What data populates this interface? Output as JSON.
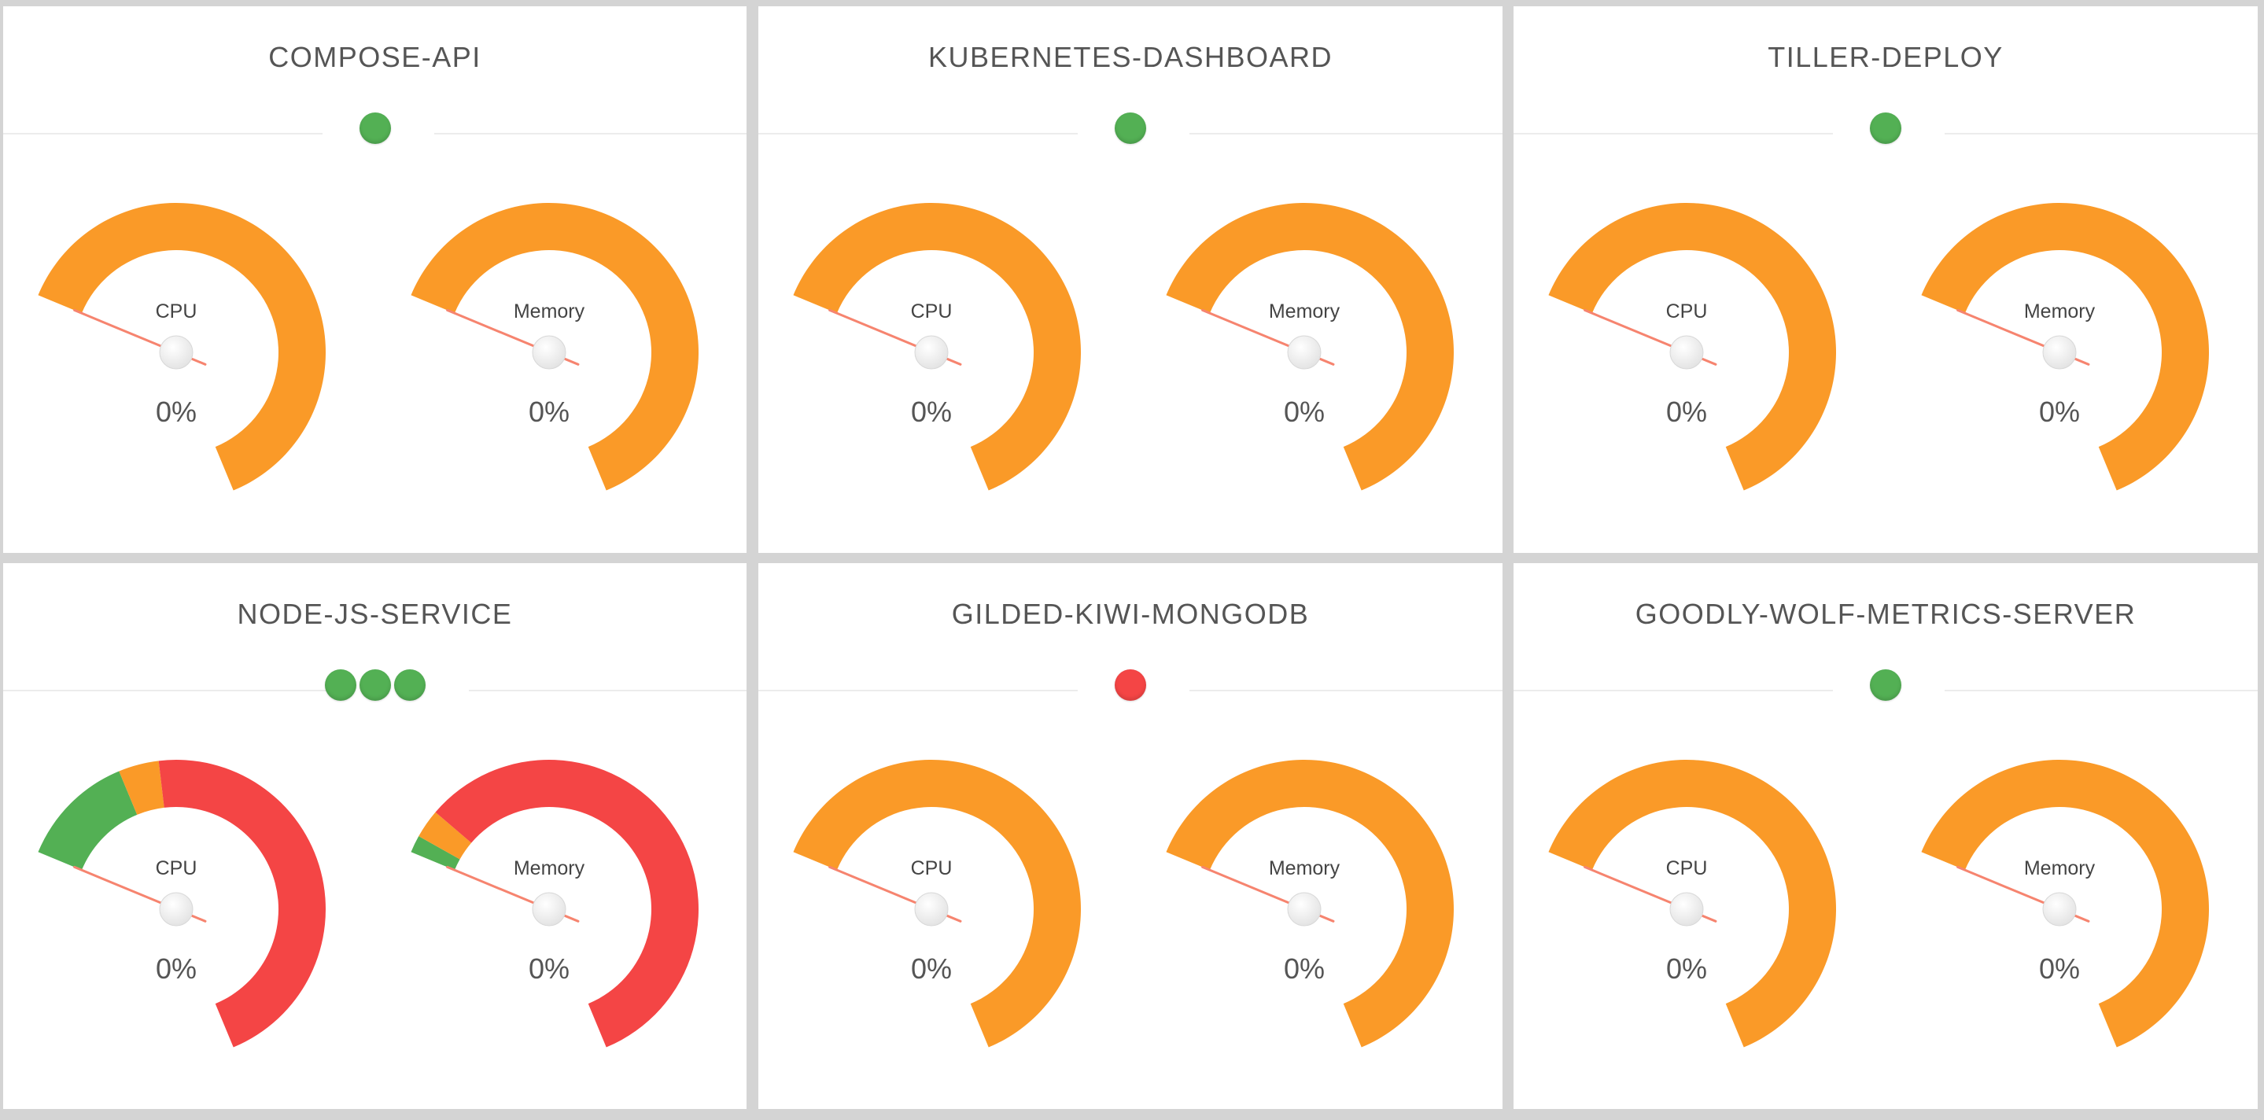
{
  "colors": {
    "ok": "#53b054",
    "warn": "#fa9a28",
    "crit": "#f44545",
    "needle": "#f6846f",
    "background": "#d4d4d4",
    "panel": "#ffffff"
  },
  "gauge_scale": {
    "min": 0,
    "max": 100
  },
  "services": [
    {
      "name": "COMPOSE-API",
      "pods": [
        "ok"
      ],
      "cpu": {
        "label": "CPU",
        "value": 0,
        "display": "0%",
        "bands": [
          {
            "from": 0,
            "to": 100,
            "color": "warn"
          }
        ]
      },
      "memory": {
        "label": "Memory",
        "value": 0,
        "display": "0%",
        "bands": [
          {
            "from": 0,
            "to": 100,
            "color": "warn"
          }
        ]
      }
    },
    {
      "name": "KUBERNETES-DASHBOARD",
      "pods": [
        "ok"
      ],
      "cpu": {
        "label": "CPU",
        "value": 0,
        "display": "0%",
        "bands": [
          {
            "from": 0,
            "to": 100,
            "color": "warn"
          }
        ]
      },
      "memory": {
        "label": "Memory",
        "value": 0,
        "display": "0%",
        "bands": [
          {
            "from": 0,
            "to": 100,
            "color": "warn"
          }
        ]
      }
    },
    {
      "name": "TILLER-DEPLOY",
      "pods": [
        "ok"
      ],
      "cpu": {
        "label": "CPU",
        "value": 0,
        "display": "0%",
        "bands": [
          {
            "from": 0,
            "to": 100,
            "color": "warn"
          }
        ]
      },
      "memory": {
        "label": "Memory",
        "value": 0,
        "display": "0%",
        "bands": [
          {
            "from": 0,
            "to": 100,
            "color": "warn"
          }
        ]
      }
    },
    {
      "name": "NODE-JS-SERVICE",
      "pods": [
        "ok",
        "ok",
        "ok"
      ],
      "cpu": {
        "label": "CPU",
        "value": 0,
        "display": "0%",
        "bands": [
          {
            "from": 0,
            "to": 20,
            "color": "ok"
          },
          {
            "from": 20,
            "to": 27,
            "color": "warn"
          },
          {
            "from": 27,
            "to": 100,
            "color": "crit"
          }
        ]
      },
      "memory": {
        "label": "Memory",
        "value": 0,
        "display": "0%",
        "bands": [
          {
            "from": 0,
            "to": 3,
            "color": "ok"
          },
          {
            "from": 3,
            "to": 8,
            "color": "warn"
          },
          {
            "from": 8,
            "to": 100,
            "color": "crit"
          }
        ]
      }
    },
    {
      "name": "GILDED-KIWI-MONGODB",
      "pods": [
        "crit"
      ],
      "cpu": {
        "label": "CPU",
        "value": 0,
        "display": "0%",
        "bands": [
          {
            "from": 0,
            "to": 100,
            "color": "warn"
          }
        ]
      },
      "memory": {
        "label": "Memory",
        "value": 0,
        "display": "0%",
        "bands": [
          {
            "from": 0,
            "to": 100,
            "color": "warn"
          }
        ]
      }
    },
    {
      "name": "GOODLY-WOLF-METRICS-SERVER",
      "pods": [
        "ok"
      ],
      "cpu": {
        "label": "CPU",
        "value": 0,
        "display": "0%",
        "bands": [
          {
            "from": 0,
            "to": 100,
            "color": "warn"
          }
        ]
      },
      "memory": {
        "label": "Memory",
        "value": 0,
        "display": "0%",
        "bands": [
          {
            "from": 0,
            "to": 100,
            "color": "warn"
          }
        ]
      }
    }
  ]
}
